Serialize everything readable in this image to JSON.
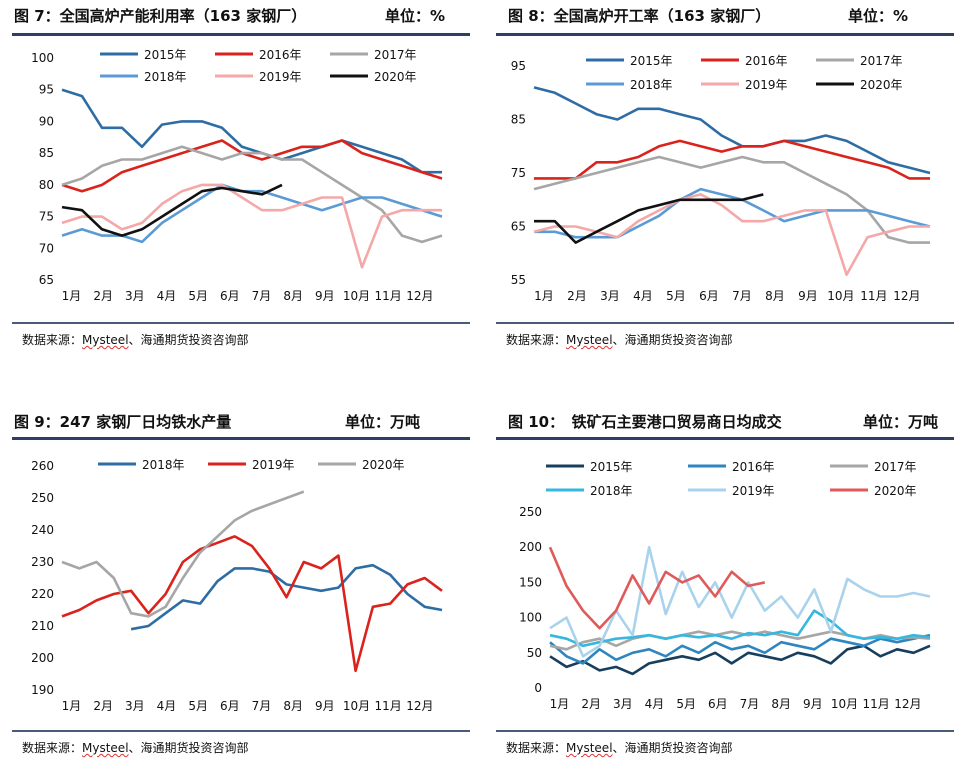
{
  "panels": [
    {
      "title": "图 7：全国高炉产能利用率（163 家钢厂）",
      "unit": "单位：%",
      "source": "数据来源：",
      "source_brand": "Mysteel",
      "source_rest": "、海通期货投资咨询部",
      "chart_data": {
        "type": "line",
        "ylim": [
          65,
          100
        ],
        "yticks": [
          65,
          70,
          75,
          80,
          85,
          90,
          95,
          100
        ],
        "xlabels": [
          "1月",
          "2月",
          "3月",
          "4月",
          "5月",
          "6月",
          "7月",
          "8月",
          "9月",
          "10月",
          "11月",
          "12月"
        ],
        "series": [
          {
            "name": "2015年",
            "color": "#2e6da4",
            "values": [
              95,
              94,
              89,
              89,
              86,
              89.5,
              90,
              90,
              89,
              86,
              85,
              84,
              85,
              86,
              87,
              86,
              85,
              84,
              82,
              82
            ]
          },
          {
            "name": "2016年",
            "color": "#d9231c",
            "values": [
              80,
              79,
              80,
              82,
              83,
              84,
              85,
              86,
              87,
              85,
              84,
              85,
              86,
              86,
              87,
              85,
              84,
              83,
              82,
              81
            ]
          },
          {
            "name": "2017年",
            "color": "#a6a6a6",
            "values": [
              80,
              81,
              83,
              84,
              84,
              85,
              86,
              85,
              84,
              85,
              85,
              84,
              84,
              82,
              80,
              78,
              76,
              72,
              71,
              72
            ]
          },
          {
            "name": "2018年",
            "color": "#5b9bd5",
            "values": [
              72,
              73,
              72,
              72,
              71,
              74,
              76,
              78,
              80,
              79,
              79,
              78,
              77,
              76,
              77,
              78,
              78,
              77,
              76,
              75
            ]
          },
          {
            "name": "2019年",
            "color": "#f4a8a8",
            "values": [
              74,
              75,
              75,
              73,
              74,
              77,
              79,
              80,
              80,
              78,
              76,
              76,
              77,
              78,
              78,
              67,
              75,
              76,
              76,
              76
            ]
          },
          {
            "name": "2020年",
            "color": "#111111",
            "values": [
              76.5,
              76,
              73,
              72,
              73,
              75,
              77,
              79,
              79.5,
              79,
              78.5,
              80
            ]
          }
        ]
      }
    },
    {
      "title": "图 8：全国高炉开工率（163 家钢厂）",
      "unit": "单位：%",
      "source": "数据来源：",
      "source_brand": "Mysteel",
      "source_rest": "、海通期货投资咨询部",
      "chart_data": {
        "type": "line",
        "ylim": [
          55,
          95
        ],
        "yticks": [
          55,
          65,
          75,
          85,
          95
        ],
        "xlabels": [
          "1月",
          "2月",
          "3月",
          "4月",
          "5月",
          "6月",
          "7月",
          "8月",
          "9月",
          "10月",
          "11月",
          "12月"
        ],
        "series": [
          {
            "name": "2015年",
            "color": "#2e6da4",
            "values": [
              91,
              90,
              88,
              86,
              85,
              87,
              87,
              86,
              85,
              82,
              80,
              80,
              81,
              81,
              82,
              81,
              79,
              77,
              76,
              75
            ]
          },
          {
            "name": "2016年",
            "color": "#d9231c",
            "values": [
              74,
              74,
              74,
              77,
              77,
              78,
              80,
              81,
              80,
              79,
              80,
              80,
              81,
              80,
              79,
              78,
              77,
              76,
              74,
              74
            ]
          },
          {
            "name": "2017年",
            "color": "#a6a6a6",
            "values": [
              72,
              73,
              74,
              75,
              76,
              77,
              78,
              77,
              76,
              77,
              78,
              77,
              77,
              75,
              73,
              71,
              68,
              63,
              62,
              62
            ]
          },
          {
            "name": "2018年",
            "color": "#5b9bd5",
            "values": [
              64,
              64,
              63,
              63,
              63,
              65,
              67,
              70,
              72,
              71,
              70,
              68,
              66,
              67,
              68,
              68,
              68,
              67,
              66,
              65
            ]
          },
          {
            "name": "2019年",
            "color": "#f4a8a8",
            "values": [
              64,
              65,
              65,
              64,
              63,
              66,
              68,
              70,
              71,
              69,
              66,
              66,
              67,
              68,
              68,
              56,
              63,
              64,
              65,
              65
            ]
          },
          {
            "name": "2020年",
            "color": "#111111",
            "values": [
              66,
              66,
              62,
              64,
              66,
              68,
              69,
              70,
              70,
              70,
              70,
              71
            ]
          }
        ]
      }
    },
    {
      "title": "图 9：247 家钢厂日均铁水产量",
      "unit": "单位：万吨",
      "source": "数据来源：",
      "source_brand": "Mysteel",
      "source_rest": "、海通期货投资咨询部",
      "chart_data": {
        "type": "line",
        "ylim": [
          190,
          260
        ],
        "yticks": [
          190,
          200,
          210,
          220,
          230,
          240,
          250,
          260
        ],
        "xlabels": [
          "1月",
          "2月",
          "3月",
          "4月",
          "5月",
          "6月",
          "7月",
          "8月",
          "9月",
          "10月",
          "11月",
          "12月"
        ],
        "series": [
          {
            "name": "2018年",
            "color": "#2e6da4",
            "values": [
              null,
              null,
              null,
              null,
              209,
              210,
              214,
              218,
              217,
              224,
              228,
              228,
              227,
              223,
              222,
              221,
              222,
              228,
              229,
              226,
              220,
              216,
              215
            ]
          },
          {
            "name": "2019年",
            "color": "#d9231c",
            "values": [
              213,
              215,
              218,
              220,
              221,
              214,
              220,
              230,
              234,
              236,
              238,
              235,
              228,
              219,
              230,
              228,
              232,
              196,
              216,
              217,
              223,
              225,
              221
            ]
          },
          {
            "name": "2020年",
            "color": "#a6a6a6",
            "values": [
              230,
              228,
              230,
              225,
              214,
              213,
              216,
              225,
              233,
              238,
              243,
              246,
              248,
              250,
              252
            ]
          }
        ]
      }
    },
    {
      "title": "图 10：　铁矿石主要港口贸易商日均成交",
      "unit": "单位：万吨",
      "source": "数据来源：",
      "source_brand": "Mysteel",
      "source_rest": "、海通期货投资咨询部",
      "chart_data": {
        "type": "line",
        "ylim": [
          0,
          250
        ],
        "yticks": [
          0,
          50,
          100,
          150,
          200,
          250
        ],
        "xlabels": [
          "1月",
          "2月",
          "3月",
          "4月",
          "5月",
          "6月",
          "7月",
          "8月",
          "9月",
          "10月",
          "11月",
          "12月"
        ],
        "series": [
          {
            "name": "2015年",
            "color": "#173e5c",
            "values": [
              45,
              30,
              38,
              25,
              30,
              20,
              35,
              40,
              45,
              40,
              50,
              35,
              50,
              45,
              40,
              50,
              45,
              35,
              55,
              60,
              45,
              55,
              50,
              60
            ]
          },
          {
            "name": "2016年",
            "color": "#2e86c1",
            "values": [
              65,
              45,
              35,
              55,
              40,
              50,
              55,
              45,
              60,
              50,
              65,
              55,
              60,
              50,
              65,
              60,
              55,
              70,
              65,
              60,
              70,
              65,
              70,
              75
            ]
          },
          {
            "name": "2017年",
            "color": "#a6a6a6",
            "values": [
              60,
              55,
              65,
              70,
              60,
              70,
              75,
              70,
              75,
              80,
              75,
              80,
              75,
              80,
              75,
              70,
              75,
              80,
              75,
              70,
              75,
              70,
              72,
              70
            ]
          },
          {
            "name": "2018年",
            "color": "#36b7e0",
            "values": [
              75,
              70,
              60,
              65,
              70,
              72,
              75,
              70,
              75,
              72,
              75,
              70,
              78,
              75,
              80,
              75,
              110,
              95,
              75,
              70,
              72,
              70,
              75,
              72
            ]
          },
          {
            "name": "2019年",
            "color": "#a9d3ec",
            "values": [
              85,
              100,
              45,
              60,
              110,
              75,
              200,
              105,
              165,
              115,
              150,
              100,
              150,
              110,
              130,
              100,
              140,
              80,
              155,
              140,
              130,
              130,
              135,
              130
            ]
          },
          {
            "name": "2020年",
            "color": "#e05a5a",
            "values": [
              200,
              145,
              110,
              85,
              110,
              160,
              120,
              165,
              150,
              160,
              130,
              165,
              145,
              150
            ]
          }
        ]
      }
    }
  ]
}
